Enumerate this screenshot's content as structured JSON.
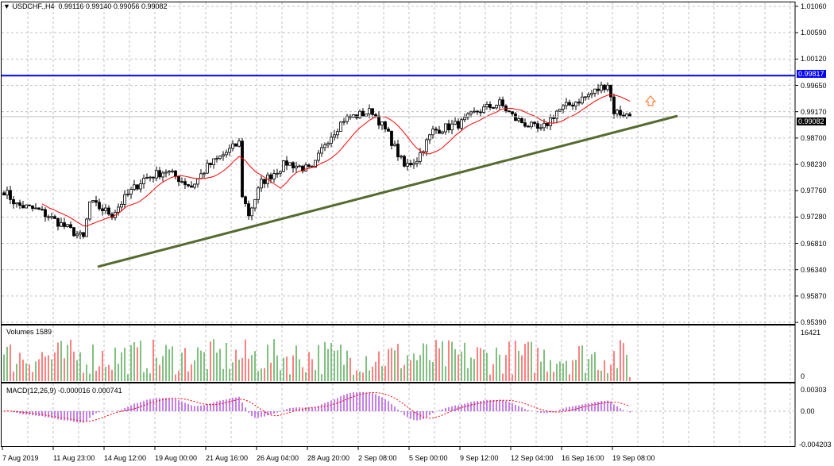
{
  "header": {
    "symbol": "USDCHF.,H4",
    "open": "0.99116",
    "high": "0.99140",
    "low": "0.99056",
    "close": "0.99082"
  },
  "volumes": {
    "label": "Volumes 1589",
    "max": "16421",
    "min": "0"
  },
  "macd": {
    "label": "MACD(12,26,9) -0.000016 0.000741",
    "max": "0.00303",
    "zero": "0.00",
    "min": "-0.004203"
  },
  "price_axis": [
    "1.01060",
    "1.00590",
    "1.00120",
    "0.99650",
    "0.99170",
    "0.98700",
    "0.98230",
    "0.97760",
    "0.97280",
    "0.96810",
    "0.96340",
    "0.95870",
    "0.95390"
  ],
  "levels": {
    "resistance": "0.99817",
    "current": "0.99082"
  },
  "time_axis": [
    "7 Aug 2019",
    "11 Aug 23:00",
    "14 Aug 12:00",
    "19 Aug 00:00",
    "21 Aug 16:00",
    "26 Aug 04:00",
    "28 Aug 20:00",
    "2 Sep 08:00",
    "5 Sep 00:00",
    "9 Sep 12:00",
    "12 Sep 04:00",
    "16 Sep 16:00",
    "19 Sep 08:00"
  ],
  "colors": {
    "resistance": "#0000ff",
    "trendline": "#556b2f",
    "ma": "#ff0000",
    "vol_up": "#008000",
    "vol_down": "#ff0000",
    "macd_hist": "#8b00d0",
    "signal": "#ff0000",
    "arrow": "#ff8040"
  },
  "chart_data": {
    "type": "candlestick",
    "ylim": [
      0.9539,
      1.0106
    ],
    "bars": 198,
    "close_keypoints": [
      [
        0,
        0.97754
      ],
      [
        4,
        0.97498
      ],
      [
        11,
        0.97398
      ],
      [
        21,
        0.97041
      ],
      [
        25,
        0.96899
      ],
      [
        27,
        0.9754
      ],
      [
        34,
        0.97326
      ],
      [
        39,
        0.97683
      ],
      [
        44,
        0.97968
      ],
      [
        51,
        0.9811
      ],
      [
        59,
        0.97825
      ],
      [
        64,
        0.98181
      ],
      [
        74,
        0.98609
      ],
      [
        75,
        0.97683
      ],
      [
        77,
        0.97326
      ],
      [
        81,
        0.97896
      ],
      [
        89,
        0.98253
      ],
      [
        97,
        0.9811
      ],
      [
        101,
        0.98609
      ],
      [
        107,
        0.99036
      ],
      [
        116,
        0.99179
      ],
      [
        121,
        0.98751
      ],
      [
        126,
        0.98181
      ],
      [
        130,
        0.98324
      ],
      [
        135,
        0.98823
      ],
      [
        144,
        0.98965
      ],
      [
        149,
        0.99179
      ],
      [
        156,
        0.99321
      ],
      [
        161,
        0.99036
      ],
      [
        169,
        0.98823
      ],
      [
        174,
        0.99179
      ],
      [
        179,
        0.99321
      ],
      [
        184,
        0.99464
      ],
      [
        190,
        0.99678
      ],
      [
        192,
        0.99179
      ],
      [
        197,
        0.99082
      ]
    ],
    "trendline": [
      [
        30,
        0.96387
      ],
      [
        212,
        0.99094
      ]
    ],
    "ma_period": 13
  }
}
